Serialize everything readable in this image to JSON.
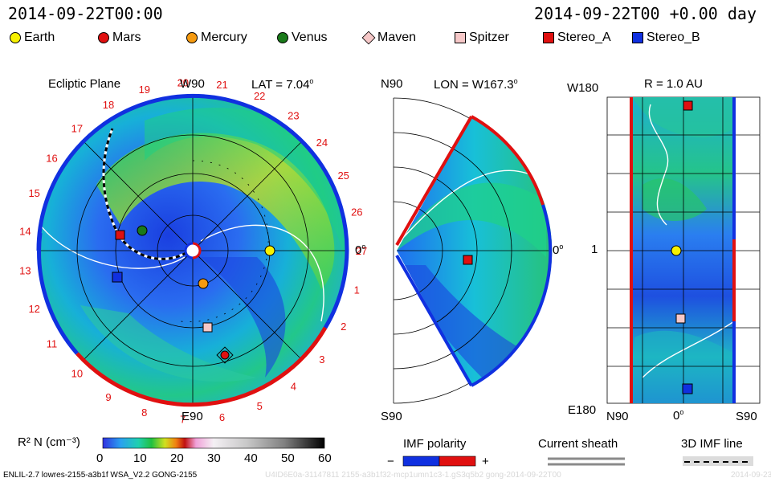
{
  "header": {
    "left_datetime": "2014-09-22T00:00",
    "right_datetime": "2014-09-22T00 +0.00 day"
  },
  "legend": [
    {
      "label": "Earth",
      "shape": "circle",
      "color": "#f7f100"
    },
    {
      "label": "Mars",
      "shape": "circle",
      "color": "#e01010"
    },
    {
      "label": "Mercury",
      "shape": "circle",
      "color": "#f59a10"
    },
    {
      "label": "Venus",
      "shape": "circle",
      "color": "#1a7a1a"
    },
    {
      "label": "Maven",
      "shape": "diamond",
      "color": "#f6c8c8"
    },
    {
      "label": "Spitzer",
      "shape": "square",
      "color": "#f6c8c8"
    },
    {
      "label": "Stereo_A",
      "shape": "square",
      "color": "#e01010"
    },
    {
      "label": "Stereo_B",
      "shape": "square",
      "color": "#1030e0"
    }
  ],
  "ecliptic": {
    "title": "Ecliptic Plane",
    "top_label": "W90",
    "bottom_label": "E90",
    "right_label": "0",
    "lat_label": "LAT = 7.04",
    "carrington_ticks": [
      "27",
      "1",
      "2",
      "3",
      "4",
      "5",
      "6",
      "7",
      "8",
      "9",
      "10",
      "11",
      "12",
      "13",
      "14",
      "15",
      "16",
      "17",
      "18",
      "19",
      "20",
      "21",
      "22",
      "23",
      "24",
      "25",
      "26"
    ]
  },
  "meridional": {
    "top_left": "N90",
    "bottom_left": "S90",
    "right_label": "0",
    "lon_label": "LON = W167.3"
  },
  "radial": {
    "top_left": "W180",
    "bottom_left": "E180",
    "r_label": "R = 1.0 AU",
    "left_tick": "1",
    "bottom_left_axis": "N90",
    "bottom_mid_axis": "0",
    "bottom_right_axis": "S90"
  },
  "colorbar": {
    "label": "R² N (cm⁻³)",
    "ticks": [
      "0",
      "10",
      "20",
      "30",
      "40",
      "50",
      "60"
    ],
    "range": [
      0,
      60
    ]
  },
  "imf_polarity": {
    "title": "IMF polarity",
    "minus": "−",
    "plus": "+"
  },
  "current_sheath": {
    "title": "Current sheath"
  },
  "imf_line": {
    "title": "3D IMF line"
  },
  "footer": {
    "model_info": "ENLIL-2.7 lowres-2155-a3b1f WSA_V2.2 GONG-2155",
    "watermark": "U4ID6E0a-31147811 2155-a3b1f32-mcp1umn1c3-1.gS3q5b2 gong-2014-09-22T00",
    "watermark_right": "2014-09-23"
  },
  "colors": {
    "blue_pol": "#1030e0",
    "red_pol": "#e01010"
  },
  "chart_data": [
    {
      "type": "heatmap",
      "title": "Ecliptic Plane",
      "value_label": "R² N (cm⁻³)",
      "value_range": [
        0,
        60
      ],
      "bodies": [
        "Earth",
        "Mars",
        "Mercury",
        "Venus",
        "Maven",
        "Spitzer",
        "Stereo_A",
        "Stereo_B"
      ]
    },
    {
      "type": "heatmap",
      "title": "LON = W167.3",
      "value_range": [
        0,
        60
      ],
      "bodies": [
        "Stereo_A"
      ]
    },
    {
      "type": "heatmap",
      "title": "R = 1.0 AU",
      "value_range": [
        0,
        60
      ],
      "bodies": [
        "Stereo_A",
        "Earth",
        "Spitzer",
        "Stereo_B"
      ]
    }
  ]
}
